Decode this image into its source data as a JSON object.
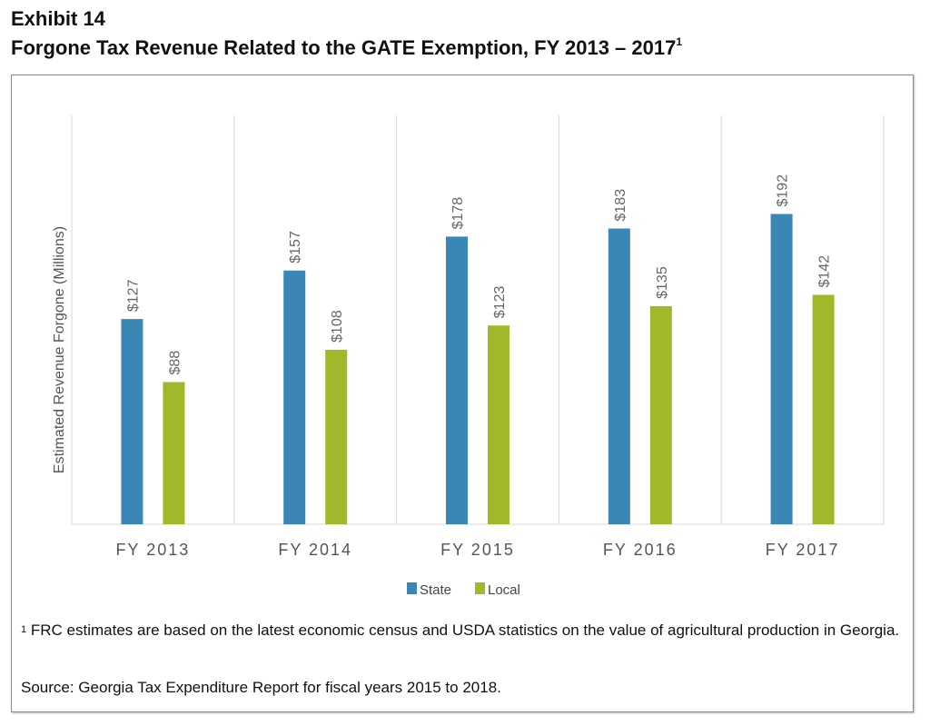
{
  "header": {
    "exhibit": "Exhibit 14",
    "title": "Forgone Tax Revenue Related to the GATE Exemption, FY 2013 – 2017",
    "title_footnote_mark": "1"
  },
  "footer": {
    "footnote_mark": "1",
    "footnote": "FRC estimates are based on the latest economic census and USDA statistics on the value of agricultural production in Georgia.",
    "source": "Source: Georgia Tax Expenditure Report for fiscal years 2015 to 2018."
  },
  "chart_data": {
    "type": "bar",
    "title": "Forgone Tax Revenue Related to the GATE Exemption, FY 2013 – 2017",
    "xlabel": "",
    "ylabel": "Estimated Revenue Forgone (Millions)",
    "categories": [
      "FY 2013",
      "FY 2014",
      "FY 2015",
      "FY 2016",
      "FY 2017"
    ],
    "series": [
      {
        "name": "State",
        "color": "#3a87b5",
        "values": [
          127,
          157,
          178,
          183,
          192
        ],
        "labels": [
          "$127",
          "$157",
          "$178",
          "$183",
          "$192"
        ]
      },
      {
        "name": "Local",
        "color": "#a3b72a",
        "values": [
          88,
          108,
          123,
          135,
          142
        ],
        "labels": [
          "$88",
          "$108",
          "$123",
          "$135",
          "$142"
        ]
      }
    ],
    "ylim": [
      0,
      253
    ],
    "grid": "vertical category separators",
    "legend": "bottom-center",
    "data_label_orientation": "rotated-vertical"
  }
}
